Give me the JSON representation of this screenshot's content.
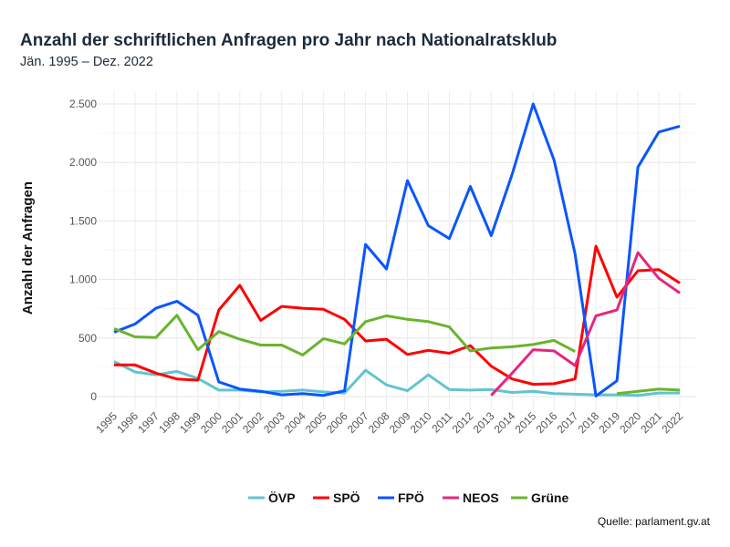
{
  "chart_data": {
    "type": "line",
    "title": "Anzahl der schriftlichen Anfragen pro Jahr nach Nationalratsklub",
    "subtitle": "Jän. 1995 – Dez. 2022",
    "xlabel": "",
    "ylabel": "Anzahl der Anfragen",
    "source": "Quelle: parlament.gv.at",
    "x": [
      1995,
      1996,
      1997,
      1998,
      1999,
      2000,
      2001,
      2002,
      2003,
      2004,
      2005,
      2006,
      2007,
      2008,
      2009,
      2010,
      2011,
      2012,
      2013,
      2014,
      2015,
      2016,
      2017,
      2018,
      2019,
      2020,
      2021,
      2022
    ],
    "ylim": [
      0,
      2600
    ],
    "yticks": [
      0,
      500,
      1000,
      1500,
      2000,
      2500
    ],
    "ytick_labels": [
      "0",
      "500",
      "1.000",
      "1.500",
      "2.000",
      "2.500"
    ],
    "grid": true,
    "legend_position": "bottom",
    "series": [
      {
        "name": "ÖVP",
        "color": "#63c3d0",
        "values": [
          300,
          210,
          185,
          215,
          155,
          55,
          55,
          40,
          45,
          55,
          40,
          30,
          225,
          100,
          50,
          185,
          60,
          55,
          60,
          35,
          45,
          25,
          20,
          15,
          15,
          10,
          30,
          30
        ]
      },
      {
        "name": "SPÖ",
        "color": "#ff0000",
        "values": [
          270,
          270,
          200,
          150,
          140,
          740,
          950,
          650,
          770,
          755,
          745,
          660,
          475,
          490,
          360,
          395,
          370,
          435,
          260,
          150,
          105,
          110,
          150,
          1285,
          850,
          1075,
          1085,
          970
        ]
      },
      {
        "name": "FPÖ",
        "color": "#0a55ff",
        "values": [
          550,
          620,
          755,
          815,
          695,
          125,
          65,
          45,
          15,
          25,
          10,
          50,
          1300,
          1090,
          1845,
          1460,
          1350,
          1795,
          1375,
          1900,
          2500,
          2020,
          1220,
          5,
          135,
          1960,
          2260,
          2310
        ]
      },
      {
        "name": "NEOS",
        "color": "#e3287d",
        "values": [
          null,
          null,
          null,
          null,
          null,
          null,
          null,
          null,
          null,
          null,
          null,
          null,
          null,
          null,
          null,
          null,
          null,
          null,
          10,
          200,
          400,
          390,
          265,
          690,
          740,
          1230,
          1010,
          885
        ]
      },
      {
        "name": "Grüne",
        "color": "#6ab42d",
        "values": [
          580,
          510,
          505,
          695,
          400,
          555,
          490,
          440,
          440,
          355,
          495,
          450,
          640,
          690,
          660,
          640,
          595,
          390,
          415,
          425,
          445,
          480,
          385,
          null,
          25,
          45,
          65,
          55
        ]
      }
    ]
  }
}
